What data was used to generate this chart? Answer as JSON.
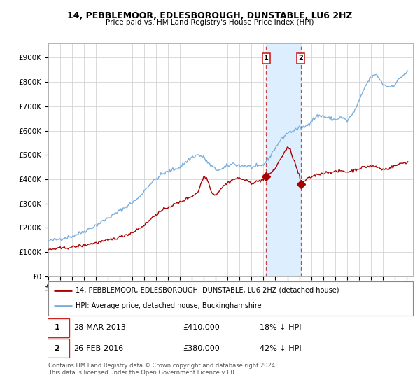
{
  "title": "14, PEBBLEMOOR, EDLESBOROUGH, DUNSTABLE, LU6 2HZ",
  "subtitle": "Price paid vs. HM Land Registry's House Price Index (HPI)",
  "ylabel_ticks": [
    "£0",
    "£100K",
    "£200K",
    "£300K",
    "£400K",
    "£500K",
    "£600K",
    "£700K",
    "£800K",
    "£900K"
  ],
  "ytick_values": [
    0,
    100000,
    200000,
    300000,
    400000,
    500000,
    600000,
    700000,
    800000,
    900000
  ],
  "ylim": [
    0,
    960000
  ],
  "xlim_start": 1995.0,
  "xlim_end": 2025.5,
  "sale1_x": 2013.24,
  "sale1_y": 410000,
  "sale2_x": 2016.12,
  "sale2_y": 380000,
  "red_line_color": "#aa0000",
  "blue_line_color": "#7aaddb",
  "highlight_color": "#ddeeff",
  "dashed_color": "#cc4444",
  "legend_label_red": "14, PEBBLEMOOR, EDLESBOROUGH, DUNSTABLE, LU6 2HZ (detached house)",
  "legend_label_blue": "HPI: Average price, detached house, Buckinghamshire",
  "sale1_date": "28-MAR-2013",
  "sale1_price": "£410,000",
  "sale1_hpi": "18% ↓ HPI",
  "sale2_date": "26-FEB-2016",
  "sale2_price": "£380,000",
  "sale2_hpi": "42% ↓ HPI",
  "footer_text": "Contains HM Land Registry data © Crown copyright and database right 2024.\nThis data is licensed under the Open Government Licence v3.0."
}
